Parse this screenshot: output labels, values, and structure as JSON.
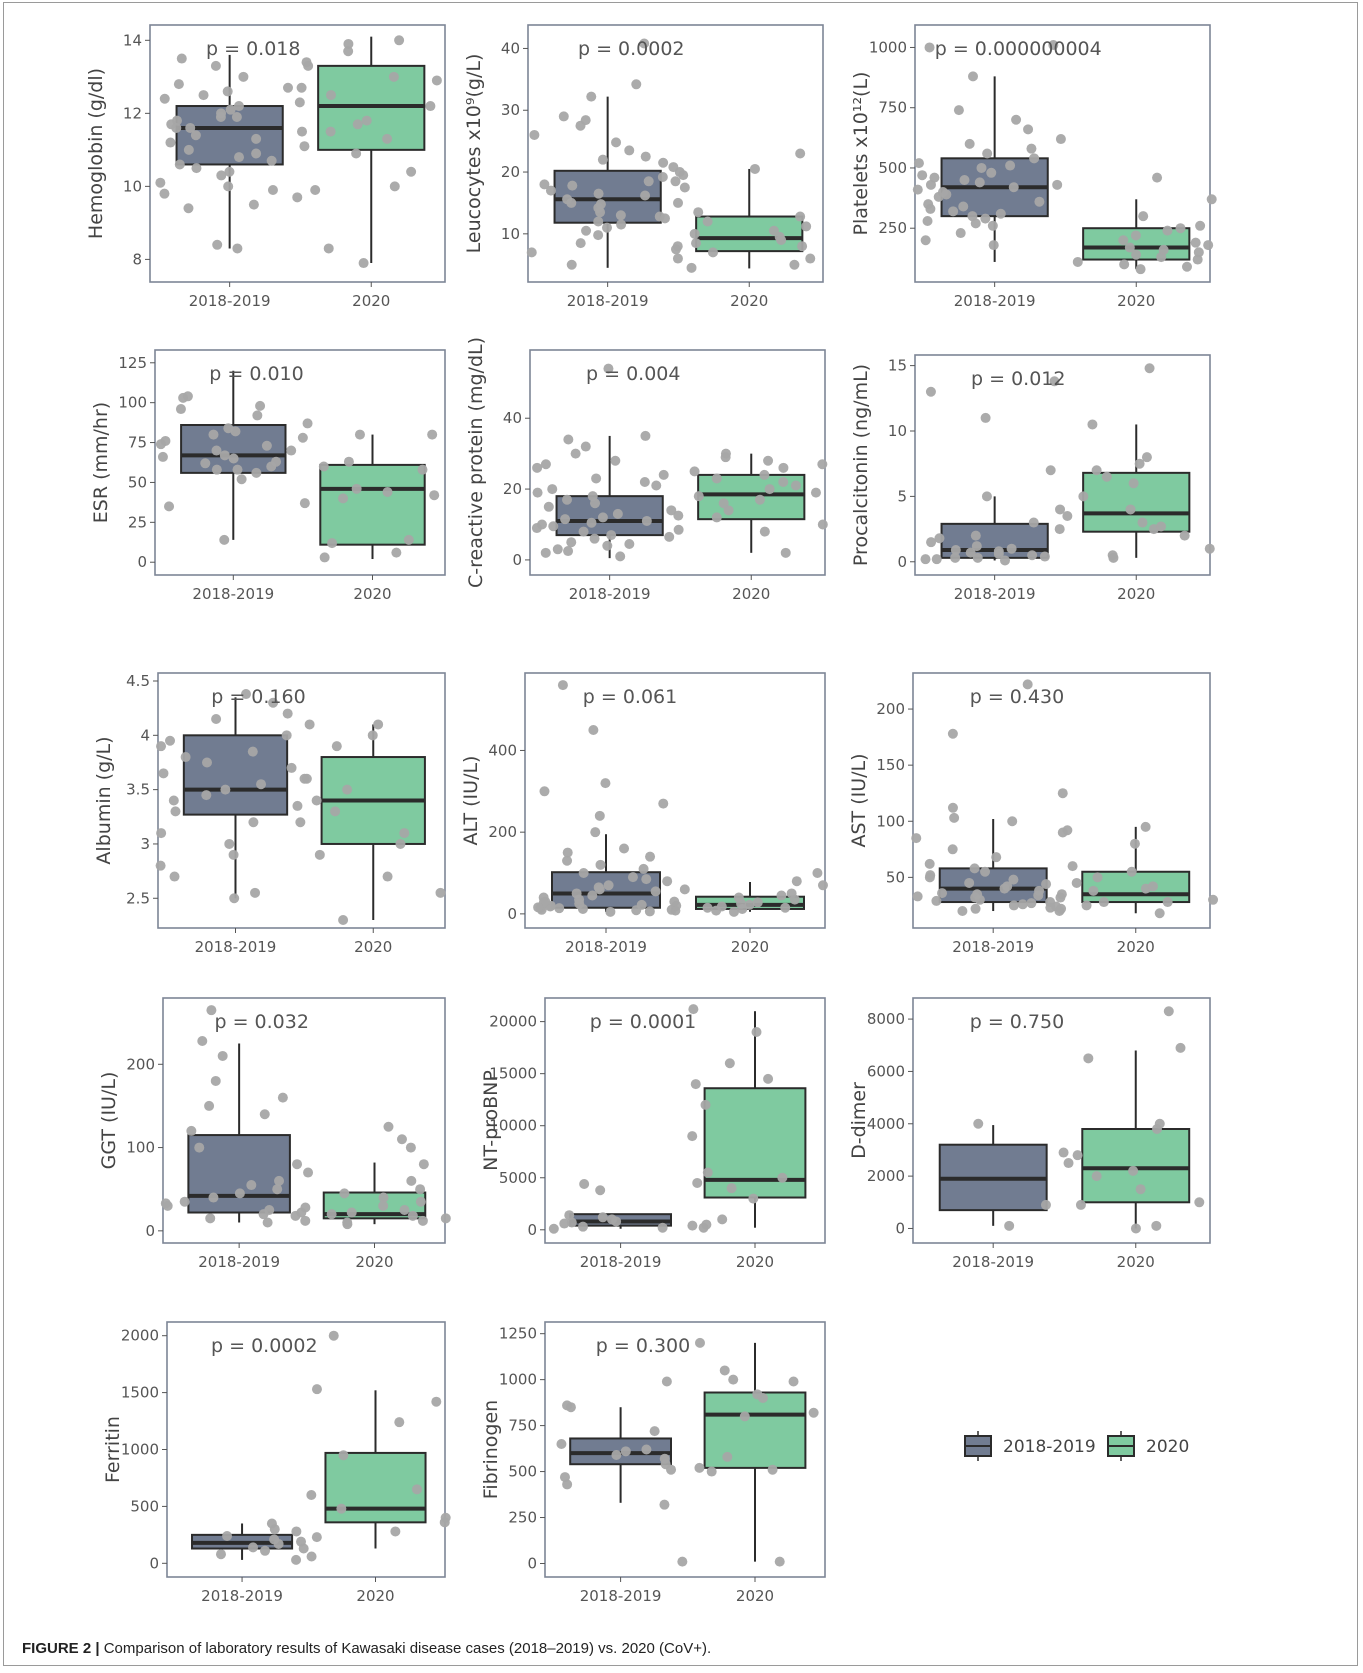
{
  "caption": {
    "label": "FIGURE 2 |",
    "text": "Comparison of laboratory results of Kawasaki disease cases (2018–2019) vs. 2020 (CoV+)."
  },
  "colors": {
    "group1": "#717c91",
    "group2": "#7fcaa0",
    "point": "#a6a6a6",
    "panel_border": "#7d8596",
    "text": "#555555"
  },
  "legend": {
    "items": [
      {
        "label": "2018-2019",
        "color": "#717c91"
      },
      {
        "label": "2020",
        "color": "#7fcaa0"
      }
    ]
  },
  "chart_data": [
    {
      "type": "box",
      "ylabel": "Hemoglobin (g/dl)",
      "pvalue": "p = 0.018",
      "categories": [
        "2018-2019",
        "2020"
      ],
      "ylim": [
        7.6,
        14.2
      ],
      "yticks": [
        8,
        10,
        12,
        14
      ],
      "boxes": [
        {
          "q1": 10.6,
          "median": 11.6,
          "q3": 12.2,
          "whisker_low": 8.3,
          "whisker_high": 13.6
        },
        {
          "q1": 11.0,
          "median": 12.2,
          "q3": 13.3,
          "whisker_low": 7.9,
          "whisker_high": 14.1
        }
      ],
      "points": [
        [
          10.0,
          10.8,
          11.2,
          11.6,
          11.9,
          12.1,
          12.4,
          12.7,
          13.0,
          13.3,
          10.5,
          9.9,
          9.5,
          9.8,
          10.4,
          11.0,
          11.3,
          11.8,
          12.2,
          12.6,
          10.6,
          10.1,
          9.7,
          11.5,
          11.7,
          12.0,
          12.3,
          13.5,
          8.4,
          8.3,
          10.9,
          11.4,
          12.8,
          11.1,
          10.3,
          9.4,
          11.9,
          12.5,
          11.6,
          10.7
        ],
        [
          13.9,
          13.7,
          13.4,
          12.9,
          12.5,
          12.2,
          11.8,
          11.5,
          11.3,
          10.9,
          10.4,
          10.0,
          9.9,
          8.3,
          7.9,
          13.3,
          12.7,
          11.7,
          14.0,
          13.0
        ]
      ]
    },
    {
      "type": "box",
      "ylabel": "Leucocytes x10⁹(g/L)",
      "pvalue": "p = 0.0002",
      "categories": [
        "2018-2019",
        "2020"
      ],
      "ylim": [
        3.5,
        42.5
      ],
      "yticks": [
        10,
        20,
        30,
        40
      ],
      "boxes": [
        {
          "q1": 11.8,
          "median": 15.6,
          "q3": 20.2,
          "whisker_low": 4.5,
          "whisker_high": 32.2
        },
        {
          "q1": 7.2,
          "median": 9.3,
          "q3": 12.8,
          "whisker_low": 4.4,
          "whisker_high": 20.5
        }
      ],
      "points": [
        [
          8.0,
          8.5,
          9.8,
          11.0,
          12.0,
          12.8,
          13.5,
          14.2,
          15.0,
          15.6,
          16.2,
          17.0,
          17.8,
          18.5,
          19.2,
          20.0,
          20.8,
          21.5,
          22.5,
          23.5,
          24.8,
          26.0,
          27.5,
          28.4,
          29.0,
          32.2,
          34.2,
          40.8,
          5.0,
          6.0,
          7.0,
          10.5,
          13.0,
          16.5,
          18.0,
          19.5,
          14.8,
          12.5,
          11.5,
          22.0
        ],
        [
          4.5,
          5.0,
          6.0,
          7.0,
          7.5,
          8.5,
          9.0,
          9.5,
          10.5,
          11.2,
          12.0,
          12.8,
          13.5,
          15.0,
          17.5,
          18.5,
          20.5,
          23.0,
          8.0,
          10.0
        ]
      ]
    },
    {
      "type": "box",
      "ylabel": "Platelets x10¹²(L)",
      "pvalue": "p = 0.000000004",
      "categories": [
        "2018-2019",
        "2020"
      ],
      "ylim": [
        60,
        1060
      ],
      "yticks": [
        250,
        500,
        750,
        1000
      ],
      "boxes": [
        {
          "q1": 300,
          "median": 420,
          "q3": 540,
          "whisker_low": 110,
          "whisker_high": 880
        },
        {
          "q1": 120,
          "median": 170,
          "q3": 250,
          "whisker_low": 80,
          "whisker_high": 370
        }
      ],
      "points": [
        [
          180,
          200,
          230,
          260,
          280,
          300,
          320,
          340,
          360,
          380,
          400,
          410,
          420,
          430,
          440,
          460,
          480,
          500,
          520,
          540,
          560,
          580,
          600,
          620,
          660,
          700,
          740,
          880,
          1000,
          1010,
          330,
          350,
          390,
          450,
          470,
          510,
          290,
          270,
          310,
          430
        ],
        [
          80,
          100,
          110,
          120,
          130,
          140,
          150,
          160,
          170,
          180,
          190,
          200,
          220,
          240,
          250,
          260,
          300,
          370,
          460,
          90
        ]
      ]
    },
    {
      "type": "box",
      "ylabel": "ESR (mm/hr)",
      "pvalue": "p = 0.010",
      "categories": [
        "2018-2019",
        "2020"
      ],
      "ylim": [
        -3,
        128
      ],
      "yticks": [
        0,
        25,
        50,
        75,
        100,
        125
      ],
      "boxes": [
        {
          "q1": 56,
          "median": 67,
          "q3": 86,
          "whisker_low": 14,
          "whisker_high": 120
        },
        {
          "q1": 11,
          "median": 46,
          "q3": 61,
          "whisker_low": 2,
          "whisker_high": 80
        }
      ],
      "points": [
        [
          14,
          35,
          37,
          52,
          56,
          58,
          60,
          63,
          65,
          67,
          70,
          73,
          76,
          80,
          84,
          87,
          92,
          96,
          98,
          103,
          104,
          58,
          62,
          74,
          78,
          82,
          66,
          70
        ],
        [
          3,
          6,
          12,
          14,
          40,
          42,
          44,
          46,
          58,
          60,
          63,
          80,
          80
        ]
      ]
    },
    {
      "type": "box",
      "ylabel": "C-reactive protein (mg/dL)",
      "pvalue": "p = 0.004",
      "categories": [
        "2018-2019",
        "2020"
      ],
      "ylim": [
        -2,
        57
      ],
      "yticks": [
        0,
        20,
        40
      ],
      "boxes": [
        {
          "q1": 7.0,
          "median": 11.0,
          "q3": 18.0,
          "whisker_low": 0.5,
          "whisker_high": 35.0
        },
        {
          "q1": 11.5,
          "median": 18.5,
          "q3": 24.0,
          "whisker_low": 2.0,
          "whisker_high": 30.0
        }
      ],
      "points": [
        [
          1,
          2,
          3,
          4,
          5,
          6,
          7,
          8,
          9,
          10,
          11,
          12,
          13,
          14,
          15,
          16,
          17,
          18,
          19,
          20,
          22,
          24,
          26,
          28,
          30,
          32,
          34,
          35,
          54,
          2.5,
          4.5,
          6.5,
          8.5,
          10.5,
          12.5,
          21,
          23,
          27,
          11.5,
          9.5
        ],
        [
          2,
          8,
          10,
          12,
          14,
          16,
          18,
          19,
          20,
          21,
          22,
          23,
          24,
          25,
          26,
          27,
          28,
          29,
          30,
          17
        ]
      ]
    },
    {
      "type": "box",
      "ylabel": "Procalcitonin (ng/mL)",
      "pvalue": "p = 0.012",
      "categories": [
        "2018-2019",
        "2020"
      ],
      "ylim": [
        -0.4,
        15.2
      ],
      "yticks": [
        0,
        5,
        10,
        15
      ],
      "boxes": [
        {
          "q1": 0.3,
          "median": 0.9,
          "q3": 2.9,
          "whisker_low": 0.1,
          "whisker_high": 5.0
        },
        {
          "q1": 2.3,
          "median": 3.7,
          "q3": 6.8,
          "whisker_low": 0.3,
          "whisker_high": 10.5
        }
      ],
      "points": [
        [
          0.1,
          0.2,
          0.3,
          0.4,
          0.5,
          0.6,
          0.8,
          1.0,
          1.2,
          1.5,
          1.8,
          2.0,
          2.5,
          3.0,
          4.0,
          5.0,
          7.0,
          11.0,
          13.0,
          13.8,
          0.7,
          0.9,
          0.3,
          0.2
        ],
        [
          0.3,
          0.5,
          1.0,
          2.0,
          2.5,
          3.0,
          3.5,
          4.0,
          5.0,
          6.0,
          6.5,
          7.0,
          7.5,
          8.0,
          10.5,
          14.8,
          2.7
        ]
      ]
    },
    {
      "type": "box",
      "ylabel": "Albumin (g/L)",
      "pvalue": "p = 0.160",
      "categories": [
        "2018-2019",
        "2020"
      ],
      "ylim": [
        2.3,
        4.5
      ],
      "yticks": [
        2.5,
        3.0,
        3.5,
        4.0,
        4.5
      ],
      "boxes": [
        {
          "q1": 3.27,
          "median": 3.5,
          "q3": 4.0,
          "whisker_low": 2.5,
          "whisker_high": 4.35
        },
        {
          "q1": 3.0,
          "median": 3.4,
          "q3": 3.8,
          "whisker_low": 2.3,
          "whisker_high": 4.1
        }
      ],
      "points": [
        [
          2.5,
          2.7,
          2.8,
          2.9,
          3.0,
          3.1,
          3.2,
          3.3,
          3.4,
          3.45,
          3.5,
          3.55,
          3.6,
          3.7,
          3.8,
          3.9,
          4.0,
          4.1,
          4.2,
          4.3,
          4.38,
          3.35,
          3.65,
          3.75,
          3.85,
          3.95,
          2.55,
          4.15
        ],
        [
          2.3,
          2.55,
          2.7,
          2.9,
          3.0,
          3.1,
          3.2,
          3.3,
          3.4,
          3.5,
          3.6,
          3.9,
          4.0,
          4.1
        ]
      ]
    },
    {
      "type": "box",
      "ylabel": "ALT (IU/L)",
      "pvalue": "p = 0.061",
      "categories": [
        "2018-2019",
        "2020"
      ],
      "ylim": [
        -15,
        570
      ],
      "yticks": [
        0,
        200,
        400
      ],
      "boxes": [
        {
          "q1": 15,
          "median": 50,
          "q3": 102,
          "whisker_low": 5,
          "whisker_high": 195
        },
        {
          "q1": 12,
          "median": 22,
          "q3": 42,
          "whisker_low": 5,
          "whisker_high": 78
        }
      ],
      "points": [
        [
          5,
          8,
          10,
          12,
          15,
          18,
          20,
          25,
          30,
          35,
          40,
          45,
          50,
          55,
          60,
          70,
          80,
          90,
          100,
          110,
          120,
          130,
          140,
          150,
          160,
          200,
          240,
          270,
          300,
          320,
          450,
          560,
          6,
          9,
          14,
          22,
          28,
          65,
          85,
          16
        ],
        [
          5,
          8,
          10,
          12,
          15,
          18,
          20,
          22,
          25,
          28,
          30,
          35,
          40,
          45,
          50,
          60,
          70,
          80,
          100,
          15
        ]
      ]
    },
    {
      "type": "box",
      "ylabel": "AST (IU/L)",
      "pvalue": "p = 0.430",
      "categories": [
        "2018-2019",
        "2020"
      ],
      "ylim": [
        12,
        225
      ],
      "yticks": [
        50,
        100,
        150,
        200
      ],
      "boxes": [
        {
          "q1": 28,
          "median": 40,
          "q3": 58,
          "whisker_low": 20,
          "whisker_high": 102
        },
        {
          "q1": 28,
          "median": 35,
          "q3": 55,
          "whisker_low": 18,
          "whisker_high": 95
        }
      ],
      "points": [
        [
          20,
          22,
          24,
          26,
          28,
          30,
          32,
          34,
          36,
          38,
          40,
          42,
          45,
          48,
          50,
          55,
          58,
          62,
          68,
          75,
          85,
          92,
          100,
          103,
          112,
          125,
          178,
          222,
          25,
          35,
          44,
          52,
          29,
          33,
          27,
          23
        ],
        [
          18,
          20,
          22,
          25,
          28,
          30,
          32,
          35,
          38,
          40,
          42,
          45,
          50,
          55,
          60,
          80,
          90,
          95,
          28
        ]
      ]
    },
    {
      "type": "box",
      "ylabel": "GGT (IU/L)",
      "pvalue": "p = 0.032",
      "categories": [
        "2018-2019",
        "2020"
      ],
      "ylim": [
        -5,
        270
      ],
      "yticks": [
        0,
        100,
        200
      ],
      "boxes": [
        {
          "q1": 22,
          "median": 42,
          "q3": 115,
          "whisker_low": 10,
          "whisker_high": 225
        },
        {
          "q1": 15,
          "median": 20,
          "q3": 46,
          "whisker_low": 8,
          "whisker_high": 82
        }
      ],
      "points": [
        [
          10,
          12,
          15,
          18,
          20,
          25,
          30,
          35,
          40,
          45,
          50,
          55,
          60,
          70,
          80,
          100,
          120,
          140,
          150,
          160,
          180,
          210,
          228,
          265,
          22,
          28,
          33
        ],
        [
          8,
          10,
          12,
          15,
          18,
          20,
          22,
          25,
          30,
          35,
          40,
          45,
          50,
          60,
          80,
          100,
          110,
          125
        ]
      ]
    },
    {
      "type": "box",
      "ylabel": "NT-proBNP",
      "pvalue": "p = 0.0001",
      "categories": [
        "2018-2019",
        "2020"
      ],
      "ylim": [
        -500,
        21500
      ],
      "yticks": [
        0,
        5000,
        10000,
        15000,
        20000
      ],
      "boxes": [
        {
          "q1": 400,
          "median": 800,
          "q3": 1500,
          "whisker_low": 100,
          "whisker_high": 1500
        },
        {
          "q1": 3100,
          "median": 4800,
          "q3": 13600,
          "whisker_low": 200,
          "whisker_high": 21000
        }
      ],
      "points": [
        [
          100,
          200,
          400,
          600,
          800,
          1000,
          1200,
          1400,
          3800,
          4400,
          300,
          700
        ],
        [
          200,
          500,
          1000,
          3000,
          4000,
          4500,
          5000,
          5500,
          9000,
          12000,
          14000,
          14500,
          16000,
          19000,
          21200
        ]
      ]
    },
    {
      "type": "box",
      "ylabel": "D-dimer",
      "pvalue": "p = 0.750",
      "categories": [
        "2018-2019",
        "2020"
      ],
      "ylim": [
        -250,
        8500
      ],
      "yticks": [
        0,
        2000,
        4000,
        6000,
        8000
      ],
      "boxes": [
        {
          "q1": 700,
          "median": 1900,
          "q3": 3200,
          "whisker_low": 100,
          "whisker_high": 3950
        },
        {
          "q1": 1000,
          "median": 2300,
          "q3": 3800,
          "whisker_low": 0,
          "whisker_high": 6800
        }
      ],
      "points": [
        [
          100,
          900,
          2900,
          4000
        ],
        [
          0,
          100,
          900,
          1000,
          1500,
          2000,
          2200,
          2500,
          2800,
          3800,
          4000,
          6500,
          6900,
          8300
        ]
      ]
    },
    {
      "type": "box",
      "ylabel": "Ferritin",
      "pvalue": "p = 0.0002",
      "categories": [
        "2018-2019",
        "2020"
      ],
      "ylim": [
        -50,
        2050
      ],
      "yticks": [
        0,
        500,
        1000,
        1500,
        2000
      ],
      "boxes": [
        {
          "q1": 130,
          "median": 180,
          "q3": 250,
          "whisker_low": 30,
          "whisker_high": 350
        },
        {
          "q1": 360,
          "median": 480,
          "q3": 970,
          "whisker_low": 130,
          "whisker_high": 1520
        }
      ],
      "points": [
        [
          30,
          80,
          110,
          140,
          170,
          190,
          210,
          240,
          280,
          300,
          350,
          60
        ],
        [
          130,
          230,
          280,
          360,
          400,
          480,
          600,
          650,
          950,
          1240,
          1420,
          1530,
          2000
        ]
      ]
    },
    {
      "type": "box",
      "ylabel": "Fibrinogen",
      "pvalue": "p = 0.300",
      "categories": [
        "2018-2019",
        "2020"
      ],
      "ylim": [
        -30,
        1270
      ],
      "yticks": [
        0,
        250,
        500,
        750,
        1000,
        1250
      ],
      "boxes": [
        {
          "q1": 540,
          "median": 600,
          "q3": 680,
          "whisker_low": 330,
          "whisker_high": 850
        },
        {
          "q1": 520,
          "median": 810,
          "q3": 930,
          "whisker_low": 10,
          "whisker_high": 1200
        }
      ],
      "points": [
        [
          320,
          430,
          470,
          510,
          540,
          570,
          590,
          610,
          620,
          650,
          720,
          850,
          860,
          990
        ],
        [
          10,
          10,
          500,
          510,
          520,
          580,
          800,
          820,
          900,
          920,
          990,
          1000,
          1050,
          1200
        ]
      ]
    }
  ]
}
